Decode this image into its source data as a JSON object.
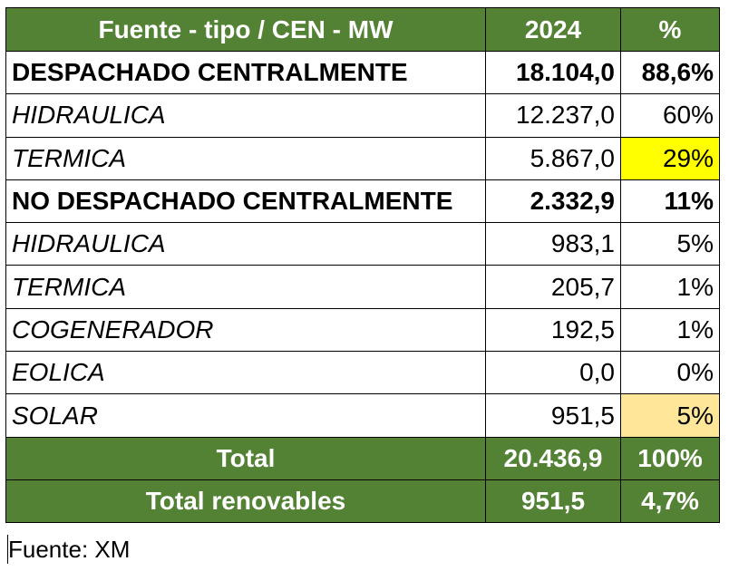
{
  "table": {
    "headers": [
      "Fuente - tipo / CEN - MW",
      "2024",
      "%"
    ],
    "rows": [
      {
        "label": "DESPACHADO CENTRALMENTE",
        "value": "18.104,0",
        "pct": "88,6%",
        "kind": "group"
      },
      {
        "label": "HIDRAULICA",
        "value": "12.237,0",
        "pct": "60%",
        "kind": "sub"
      },
      {
        "label": "TERMICA",
        "value": "5.867,0",
        "pct": "29%",
        "kind": "sub",
        "pct_highlight": "#ffff00"
      },
      {
        "label": "NO DESPACHADO CENTRALMENTE",
        "value": "2.332,9",
        "pct": "11%",
        "kind": "group"
      },
      {
        "label": "HIDRAULICA",
        "value": "983,1",
        "pct": "5%",
        "kind": "sub"
      },
      {
        "label": "TERMICA",
        "value": "205,7",
        "pct": "1%",
        "kind": "sub"
      },
      {
        "label": "COGENERADOR",
        "value": "192,5",
        "pct": "1%",
        "kind": "sub"
      },
      {
        "label": "EOLICA",
        "value": "0,0",
        "pct": "0%",
        "kind": "sub"
      },
      {
        "label": "SOLAR",
        "value": "951,5",
        "pct": "5%",
        "kind": "sub",
        "pct_highlight": "#ffe699"
      }
    ],
    "totals": [
      {
        "label": "Total",
        "value": "20.436,9",
        "pct": "100%",
        "value_highlight": "#0070c0"
      },
      {
        "label": "Total renovables",
        "value": "951,5",
        "pct": "4,7%"
      }
    ],
    "header_color": "#548235"
  },
  "source": "Fuente: XM"
}
